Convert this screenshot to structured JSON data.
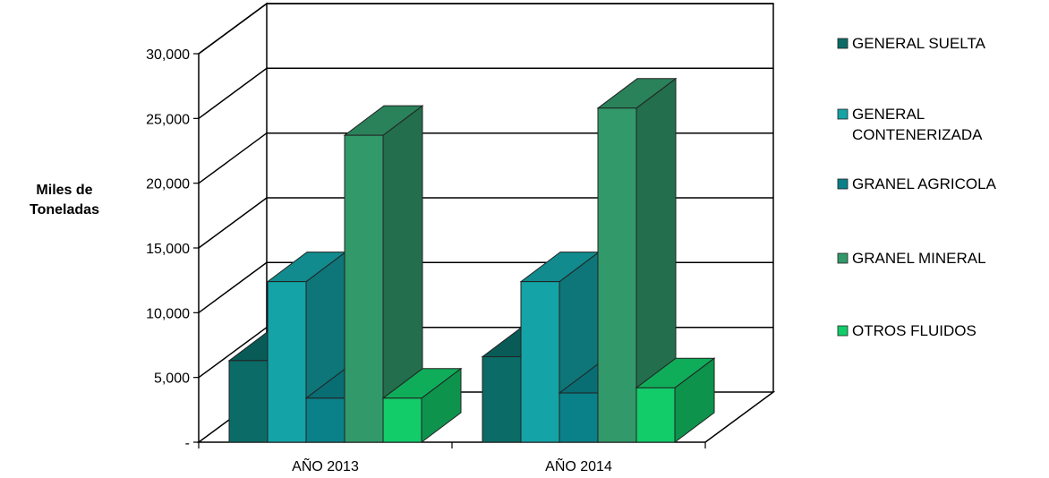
{
  "chart_data": {
    "type": "bar",
    "style": "3d-clustered-column",
    "ylabel_lines": [
      "Miles de",
      "Toneladas"
    ],
    "categories": [
      "AÑO 2013",
      "AÑO 2014"
    ],
    "ylim": [
      0,
      30000
    ],
    "yticks": [
      {
        "value": 0,
        "label": "-"
      },
      {
        "value": 5000,
        "label": "5,000"
      },
      {
        "value": 10000,
        "label": "10,000"
      },
      {
        "value": 15000,
        "label": "15,000"
      },
      {
        "value": 20000,
        "label": "20,000"
      },
      {
        "value": 25000,
        "label": "25,000"
      },
      {
        "value": 30000,
        "label": "30,000"
      }
    ],
    "grid": true,
    "legend_position": "right",
    "series": [
      {
        "name": "GENERAL SUELTA",
        "legend_lines": [
          "GENERAL SUELTA"
        ],
        "color": "#0b6b66",
        "values": [
          6300,
          6600
        ]
      },
      {
        "name": "GENERAL CONTENERIZADA",
        "legend_lines": [
          "GENERAL",
          "CONTENERIZADA"
        ],
        "color": "#14a3a6",
        "values": [
          12400,
          12400
        ]
      },
      {
        "name": "GRANEL AGRICOLA",
        "legend_lines": [
          "GRANEL AGRICOLA"
        ],
        "color": "#0a8088",
        "values": [
          3400,
          3800
        ]
      },
      {
        "name": "GRANEL MINERAL",
        "legend_lines": [
          "GRANEL MINERAL"
        ],
        "color": "#31996a",
        "values": [
          23700,
          25800
        ]
      },
      {
        "name": "OTROS FLUIDOS",
        "legend_lines": [
          "OTROS FLUIDOS"
        ],
        "color": "#12cc6a",
        "values": [
          3400,
          4200
        ]
      }
    ]
  }
}
